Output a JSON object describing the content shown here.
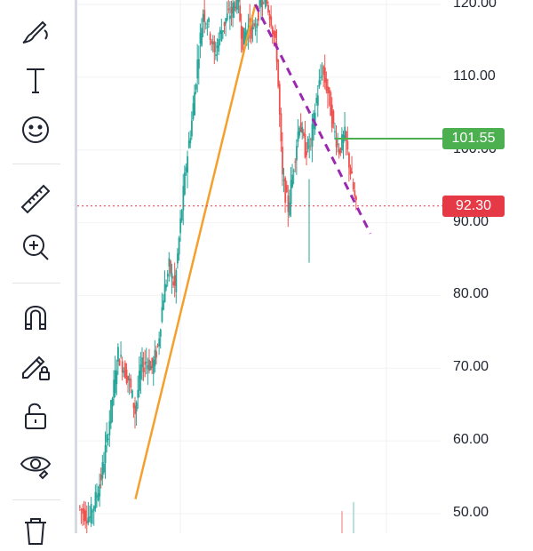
{
  "toolbar": {
    "tools": [
      {
        "name": "brush-tool-icon"
      },
      {
        "name": "text-tool-icon"
      },
      {
        "name": "emoji-tool-icon"
      },
      {
        "name": "ruler-tool-icon"
      },
      {
        "name": "zoom-in-tool-icon"
      },
      {
        "name": "magnet-tool-icon"
      },
      {
        "name": "lock-drawings-icon"
      },
      {
        "name": "unlock-icon"
      },
      {
        "name": "hide-drawings-icon"
      },
      {
        "name": "trash-icon"
      }
    ]
  },
  "price_axis": {
    "ticks": [
      "120.00",
      "110.00",
      "100.00",
      "90.00",
      "80.00",
      "70.00",
      "60.00",
      "50.00"
    ]
  },
  "tags": {
    "horizontal_line_price": "101.55",
    "current_price": "92.30"
  },
  "colors": {
    "up": "#26a69a",
    "down": "#ef5350",
    "trendline": "#f4a02c",
    "dashed_trend": "#9c27b0",
    "horizontal_line": "#4caf50",
    "current_price": "#e53946"
  },
  "chart_data": {
    "type": "candlestick",
    "y_axis_range": [
      49,
      122
    ],
    "horizontal_line": 101.55,
    "current_price": 92.3,
    "trendline_points": [
      [
        0.16,
        52
      ],
      [
        0.49,
        120
      ]
    ],
    "dashed_trend_points": [
      [
        0.49,
        120
      ],
      [
        0.66,
        88.5
      ]
    ],
    "price_path": [
      51,
      50,
      49.5,
      52,
      55,
      60,
      66,
      72,
      70,
      68,
      64,
      70,
      71,
      70,
      73,
      80,
      84,
      81,
      90,
      98,
      104,
      112,
      119,
      117,
      113,
      116,
      118,
      119,
      121,
      115,
      117,
      116,
      120,
      121,
      118,
      113,
      96,
      92,
      98,
      104,
      100,
      101,
      107,
      111,
      108,
      103,
      100,
      102,
      97,
      92
    ]
  }
}
